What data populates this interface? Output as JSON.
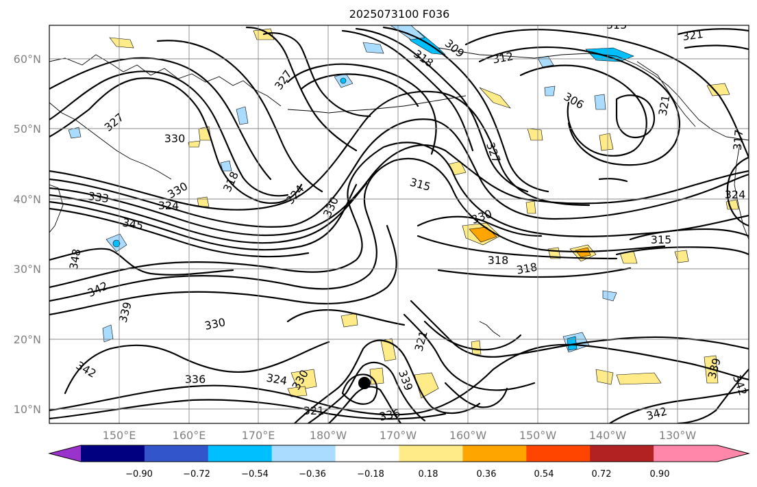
{
  "title": "2025073100 F036",
  "map": {
    "lat_labels": [
      "60°N",
      "50°N",
      "40°N",
      "30°N",
      "20°N",
      "10°N"
    ],
    "lon_labels": [
      "150°E",
      "160°E",
      "170°E",
      "180°W",
      "170°W",
      "160°W",
      "150°W",
      "140°W",
      "130°W"
    ],
    "contour_labels": [
      "315",
      "318",
      "321",
      "327",
      "309",
      "312",
      "306",
      "327",
      "315",
      "330",
      "327",
      "330",
      "318",
      "324",
      "330",
      "333",
      "324",
      "345",
      "348",
      "330",
      "315",
      "318",
      "318",
      "342",
      "339",
      "330",
      "321",
      "342",
      "336",
      "324",
      "330",
      "321",
      "336",
      "339",
      "339",
      "342",
      "342",
      "321",
      "324",
      "317"
    ],
    "storm_marker": "tropical-cyclone-marker"
  },
  "colorbar": {
    "ticks": [
      "−0.90",
      "−0.72",
      "−0.54",
      "−0.36",
      "−0.18",
      "0.18",
      "0.36",
      "0.54",
      "0.72",
      "0.90"
    ],
    "colors": [
      "#9933cc",
      "#000080",
      "#3355cc",
      "#00bfff",
      "#aadcff",
      "#ffffff",
      "#ffeb88",
      "#ffa500",
      "#ff4500",
      "#b22222",
      "#ff88aa",
      "#ff88aa"
    ]
  }
}
